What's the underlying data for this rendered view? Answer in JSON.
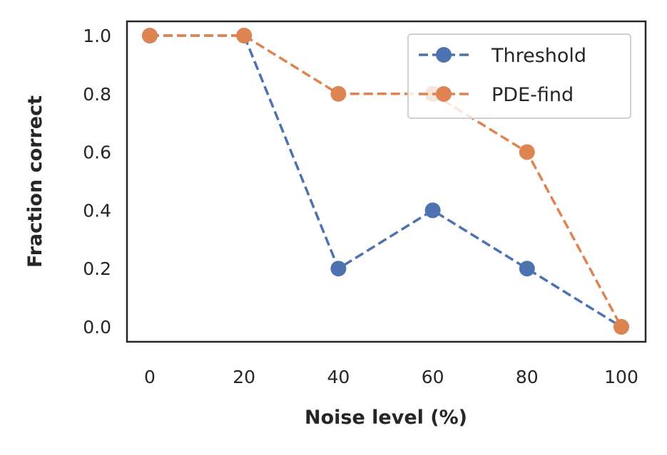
{
  "chart_data": {
    "type": "line",
    "title": "",
    "xlabel": "Noise level (%)",
    "ylabel": "Fraction correct",
    "x": [
      0,
      20,
      40,
      60,
      80,
      100
    ],
    "xlim": [
      -5,
      105
    ],
    "ylim": [
      -0.05,
      1.05
    ],
    "xticks": [
      "0",
      "20",
      "40",
      "60",
      "80",
      "100"
    ],
    "yticks": [
      "0.0",
      "0.2",
      "0.4",
      "0.6",
      "0.8",
      "1.0"
    ],
    "grid": false,
    "legend_position": "top-right",
    "series": [
      {
        "name": "Threshold",
        "values": [
          1.0,
          1.0,
          0.2,
          0.4,
          0.2,
          0.0
        ],
        "color": "#4c72b0",
        "linestyle": "dashed",
        "marker": "circle"
      },
      {
        "name": "PDE-find",
        "values": [
          1.0,
          1.0,
          0.8,
          0.8,
          0.6,
          0.0
        ],
        "color": "#dd8452",
        "linestyle": "dashed",
        "marker": "circle"
      }
    ]
  }
}
